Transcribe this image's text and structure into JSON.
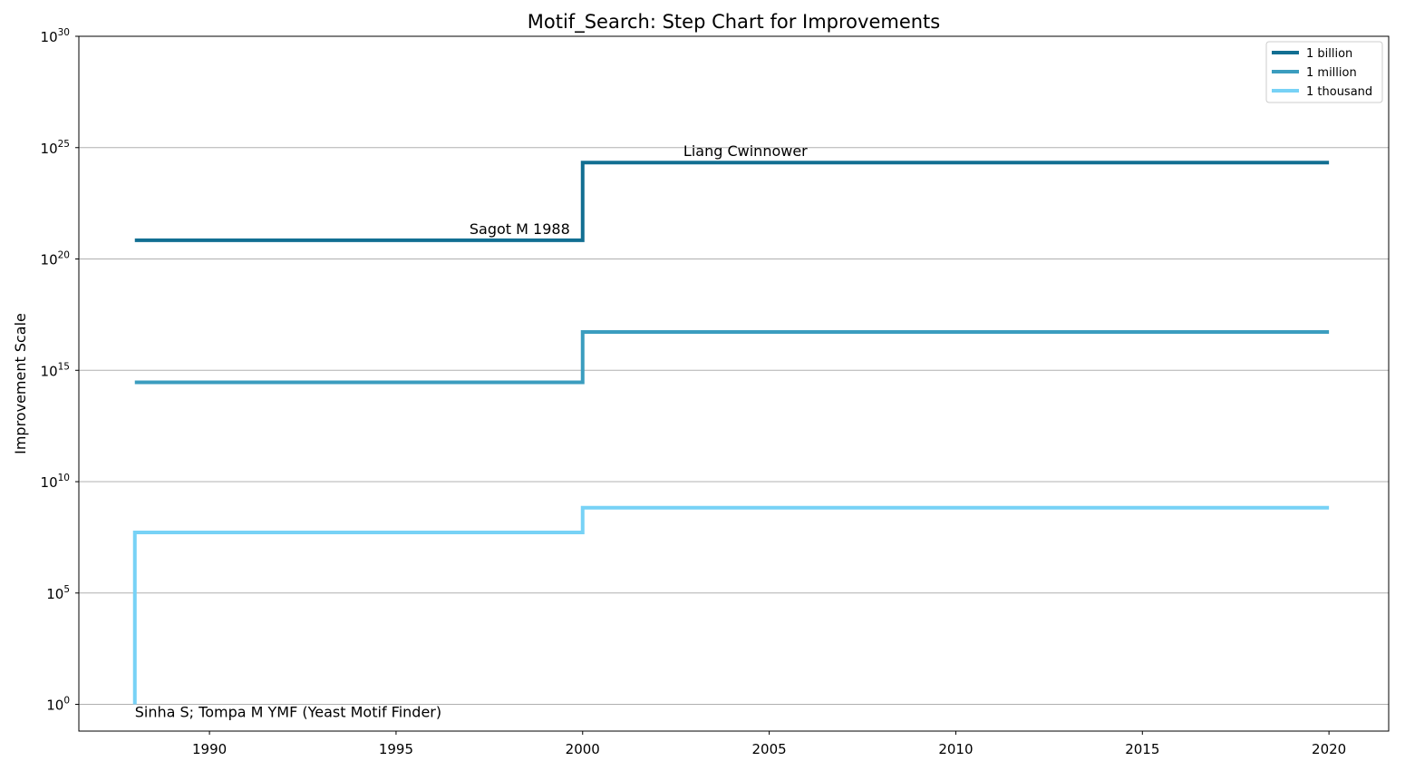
{
  "chart_data": {
    "type": "line",
    "step": "post",
    "title": "Motif_Search: Step Chart for Improvements",
    "xlabel": "",
    "ylabel": "Improvement Scale",
    "xlim": [
      1986.5,
      2021.6
    ],
    "ylim_exp": [
      -1.2,
      30
    ],
    "yscale": "log",
    "grid": "y",
    "legend_position": "top-right",
    "x_ticks": [
      1990,
      1995,
      2000,
      2005,
      2010,
      2015,
      2020
    ],
    "y_tick_exponents": [
      0,
      5,
      10,
      15,
      20,
      25,
      30
    ],
    "y_tick_base": "10",
    "series": [
      {
        "name": "1 billion",
        "color": "#126f92",
        "x": [
          1988,
          2000,
          2020
        ],
        "y_exp": [
          20.84,
          24.33,
          24.33
        ]
      },
      {
        "name": "1 million",
        "color": "#3b9dbf",
        "x": [
          1988,
          2000,
          2020
        ],
        "y_exp": [
          14.46,
          16.72,
          16.72
        ]
      },
      {
        "name": "1 thousand",
        "color": "#77d2f6",
        "x": [
          1988,
          1988,
          2000,
          2020
        ],
        "y_exp": [
          0,
          7.72,
          8.83,
          8.83
        ]
      }
    ],
    "annotations": [
      {
        "text": "Sinha S; Tompa M YMF (Yeast Motif Finder)",
        "x": 1988,
        "y_exp": 0,
        "anchor": "start"
      },
      {
        "text": "Sagot M 1988",
        "x": 2000,
        "y_exp": 20.84,
        "anchor": "end"
      },
      {
        "text": "Liang Cwinnower",
        "x": 2002.7,
        "y_exp": 24.33,
        "anchor": "start"
      }
    ]
  }
}
